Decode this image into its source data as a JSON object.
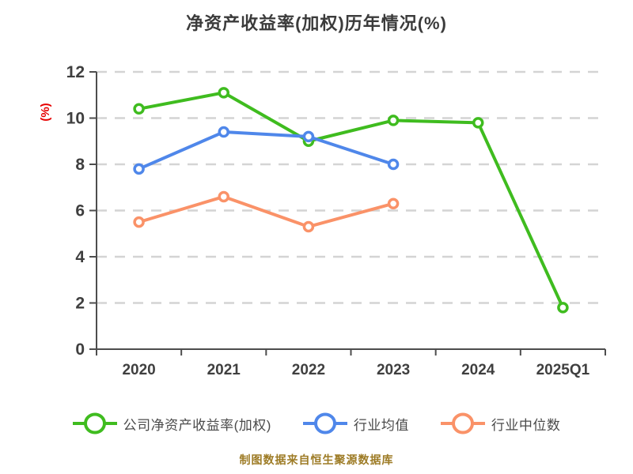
{
  "title": "净资产收益率(加权)历年情况(%)",
  "caption": "制图数据来自恒生聚源数据库",
  "colors": {
    "title_text": "#3b3b3b",
    "axis_line": "#4d4d4d",
    "tick_label": "#3f3f3f",
    "gridline": "#d4d4d4",
    "ylabel_red": "#e60000",
    "legend_text": "#4a4a4a",
    "caption_gold": "#9d7b25",
    "series_green": "#3fbc1f",
    "series_blue": "#4f87ea",
    "series_orange": "#fa9268",
    "marker_fill": "#ffffff"
  },
  "chart_data": {
    "type": "line",
    "title": "净资产收益率(加权)历年情况(%)",
    "categories": [
      "2020",
      "2021",
      "2022",
      "2023",
      "2024",
      "2025Q1"
    ],
    "series": [
      {
        "name": "公司净资产收益率(加权)",
        "color": "#3fbc1f",
        "values": [
          10.4,
          11.1,
          9.0,
          9.9,
          9.8,
          1.8
        ]
      },
      {
        "name": "行业均值",
        "color": "#4f87ea",
        "values": [
          7.8,
          9.4,
          9.2,
          8.0,
          null,
          null
        ]
      },
      {
        "name": "行业中位数",
        "color": "#fa9268",
        "values": [
          5.5,
          6.6,
          5.3,
          6.3,
          null,
          null
        ]
      }
    ],
    "xlabel": "",
    "ylabel": "(%)",
    "ylim": [
      0,
      12
    ],
    "yticks": [
      0,
      2,
      4,
      6,
      8,
      10,
      12
    ],
    "grid": "horizontal dashed",
    "legend_position": "bottom",
    "marker": "circle-white-fill"
  }
}
